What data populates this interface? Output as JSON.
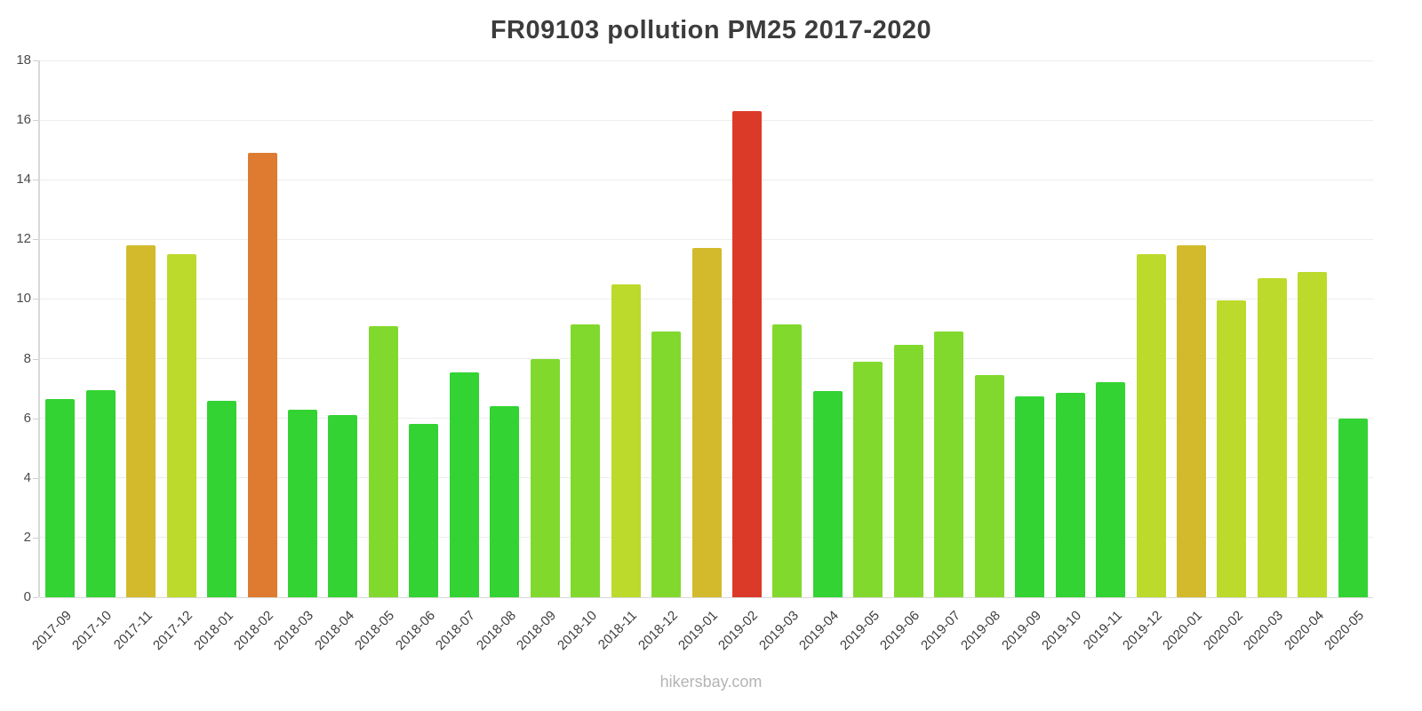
{
  "chart_data": {
    "type": "bar",
    "title": "FR09103 pollution PM25 2017-2020",
    "source": "hikersbay.com",
    "xlabel": "",
    "ylabel": "",
    "ylim": [
      0,
      18
    ],
    "yticks": [
      0,
      2,
      4,
      6,
      8,
      10,
      12,
      14,
      16,
      18
    ],
    "grid": true,
    "legend": "none",
    "categories": [
      "2017-09",
      "2017-10",
      "2017-11",
      "2017-12",
      "2018-01",
      "2018-02",
      "2018-03",
      "2018-04",
      "2018-05",
      "2018-06",
      "2018-07",
      "2018-08",
      "2018-09",
      "2018-10",
      "2018-11",
      "2018-12",
      "2019-01",
      "2019-02",
      "2019-03",
      "2019-04",
      "2019-05",
      "2019-06",
      "2019-07",
      "2019-08",
      "2019-09",
      "2019-10",
      "2019-11",
      "2019-12",
      "2020-01",
      "2020-02",
      "2020-03",
      "2020-04",
      "2020-05"
    ],
    "values": [
      6.65,
      6.95,
      11.8,
      11.5,
      6.6,
      14.9,
      6.3,
      6.1,
      9.1,
      5.8,
      7.55,
      6.4,
      8.0,
      9.15,
      10.5,
      8.9,
      11.7,
      16.3,
      9.15,
      6.9,
      7.9,
      8.45,
      8.9,
      7.45,
      6.75,
      6.85,
      7.2,
      11.5,
      11.8,
      9.95,
      10.7,
      10.9,
      6.0
    ],
    "bar_color_keys": [
      "green",
      "green",
      "gold",
      "yellow_green",
      "green",
      "orange",
      "green",
      "green",
      "light_green",
      "green",
      "green",
      "green",
      "light_green",
      "light_green",
      "yellow_green",
      "light_green",
      "gold",
      "red",
      "light_green",
      "green",
      "light_green",
      "light_green",
      "light_green",
      "light_green",
      "green",
      "green",
      "green",
      "yellow_green",
      "gold",
      "yellow_green",
      "yellow_green",
      "yellow_green",
      "green"
    ],
    "palette": {
      "green": "#33d333",
      "light_green": "#82d92e",
      "yellow_green": "#bcda2b",
      "gold": "#d3ba2c",
      "orange": "#de7b30",
      "red": "#dc3a28"
    }
  }
}
